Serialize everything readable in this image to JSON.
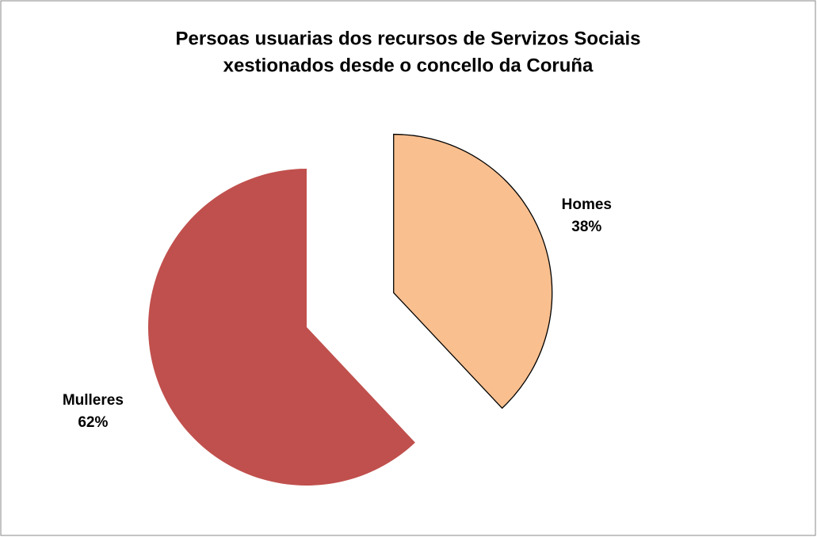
{
  "chart_data": {
    "type": "pie",
    "title": [
      "Persoas usuarias dos recursos de Servizos Sociais",
      "xestionados desde o concello da Coruña"
    ],
    "categories": [
      "Homes",
      "Mulleres"
    ],
    "values": [
      38,
      62
    ],
    "value_labels": [
      "38%",
      "62%"
    ],
    "colors": [
      "#f9bf8f",
      "#c0504d"
    ]
  }
}
